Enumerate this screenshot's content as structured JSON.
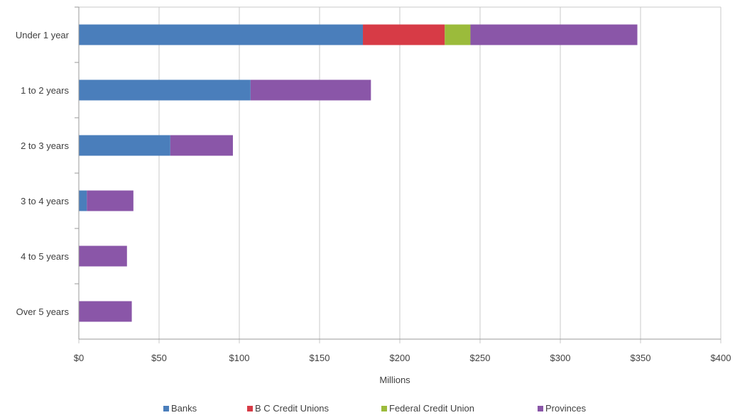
{
  "chart_data": {
    "type": "bar",
    "orientation": "horizontal",
    "stacked": true,
    "title": "",
    "xlabel": "Millions",
    "ylabel": "",
    "xlim": [
      0,
      400
    ],
    "x_ticks": [
      0,
      50,
      100,
      150,
      200,
      250,
      300,
      350,
      400
    ],
    "x_tick_labels": [
      "$0",
      "$50",
      "$100",
      "$150",
      "$200",
      "$250",
      "$300",
      "$350",
      "$400"
    ],
    "grid": "vertical",
    "legend_position": "bottom",
    "categories": [
      "Under 1 year",
      "1 to 2 years",
      "2 to 3 years",
      "3 to 4 years",
      "4 to 5 years",
      "Over 5 years"
    ],
    "series": [
      {
        "name": "Banks",
        "color": "#4a7ebb",
        "values": [
          177,
          107,
          57,
          5,
          0,
          0
        ]
      },
      {
        "name": "B C Credit Unions",
        "color": "#d73b46",
        "values": [
          51,
          0,
          0,
          0,
          0,
          0
        ]
      },
      {
        "name": "Federal Credit Union",
        "color": "#9bbb3b",
        "values": [
          16,
          0,
          0,
          0,
          0,
          0
        ]
      },
      {
        "name": "Provinces",
        "color": "#8a56a8",
        "values": [
          104,
          75,
          39,
          29,
          30,
          33
        ]
      }
    ]
  }
}
